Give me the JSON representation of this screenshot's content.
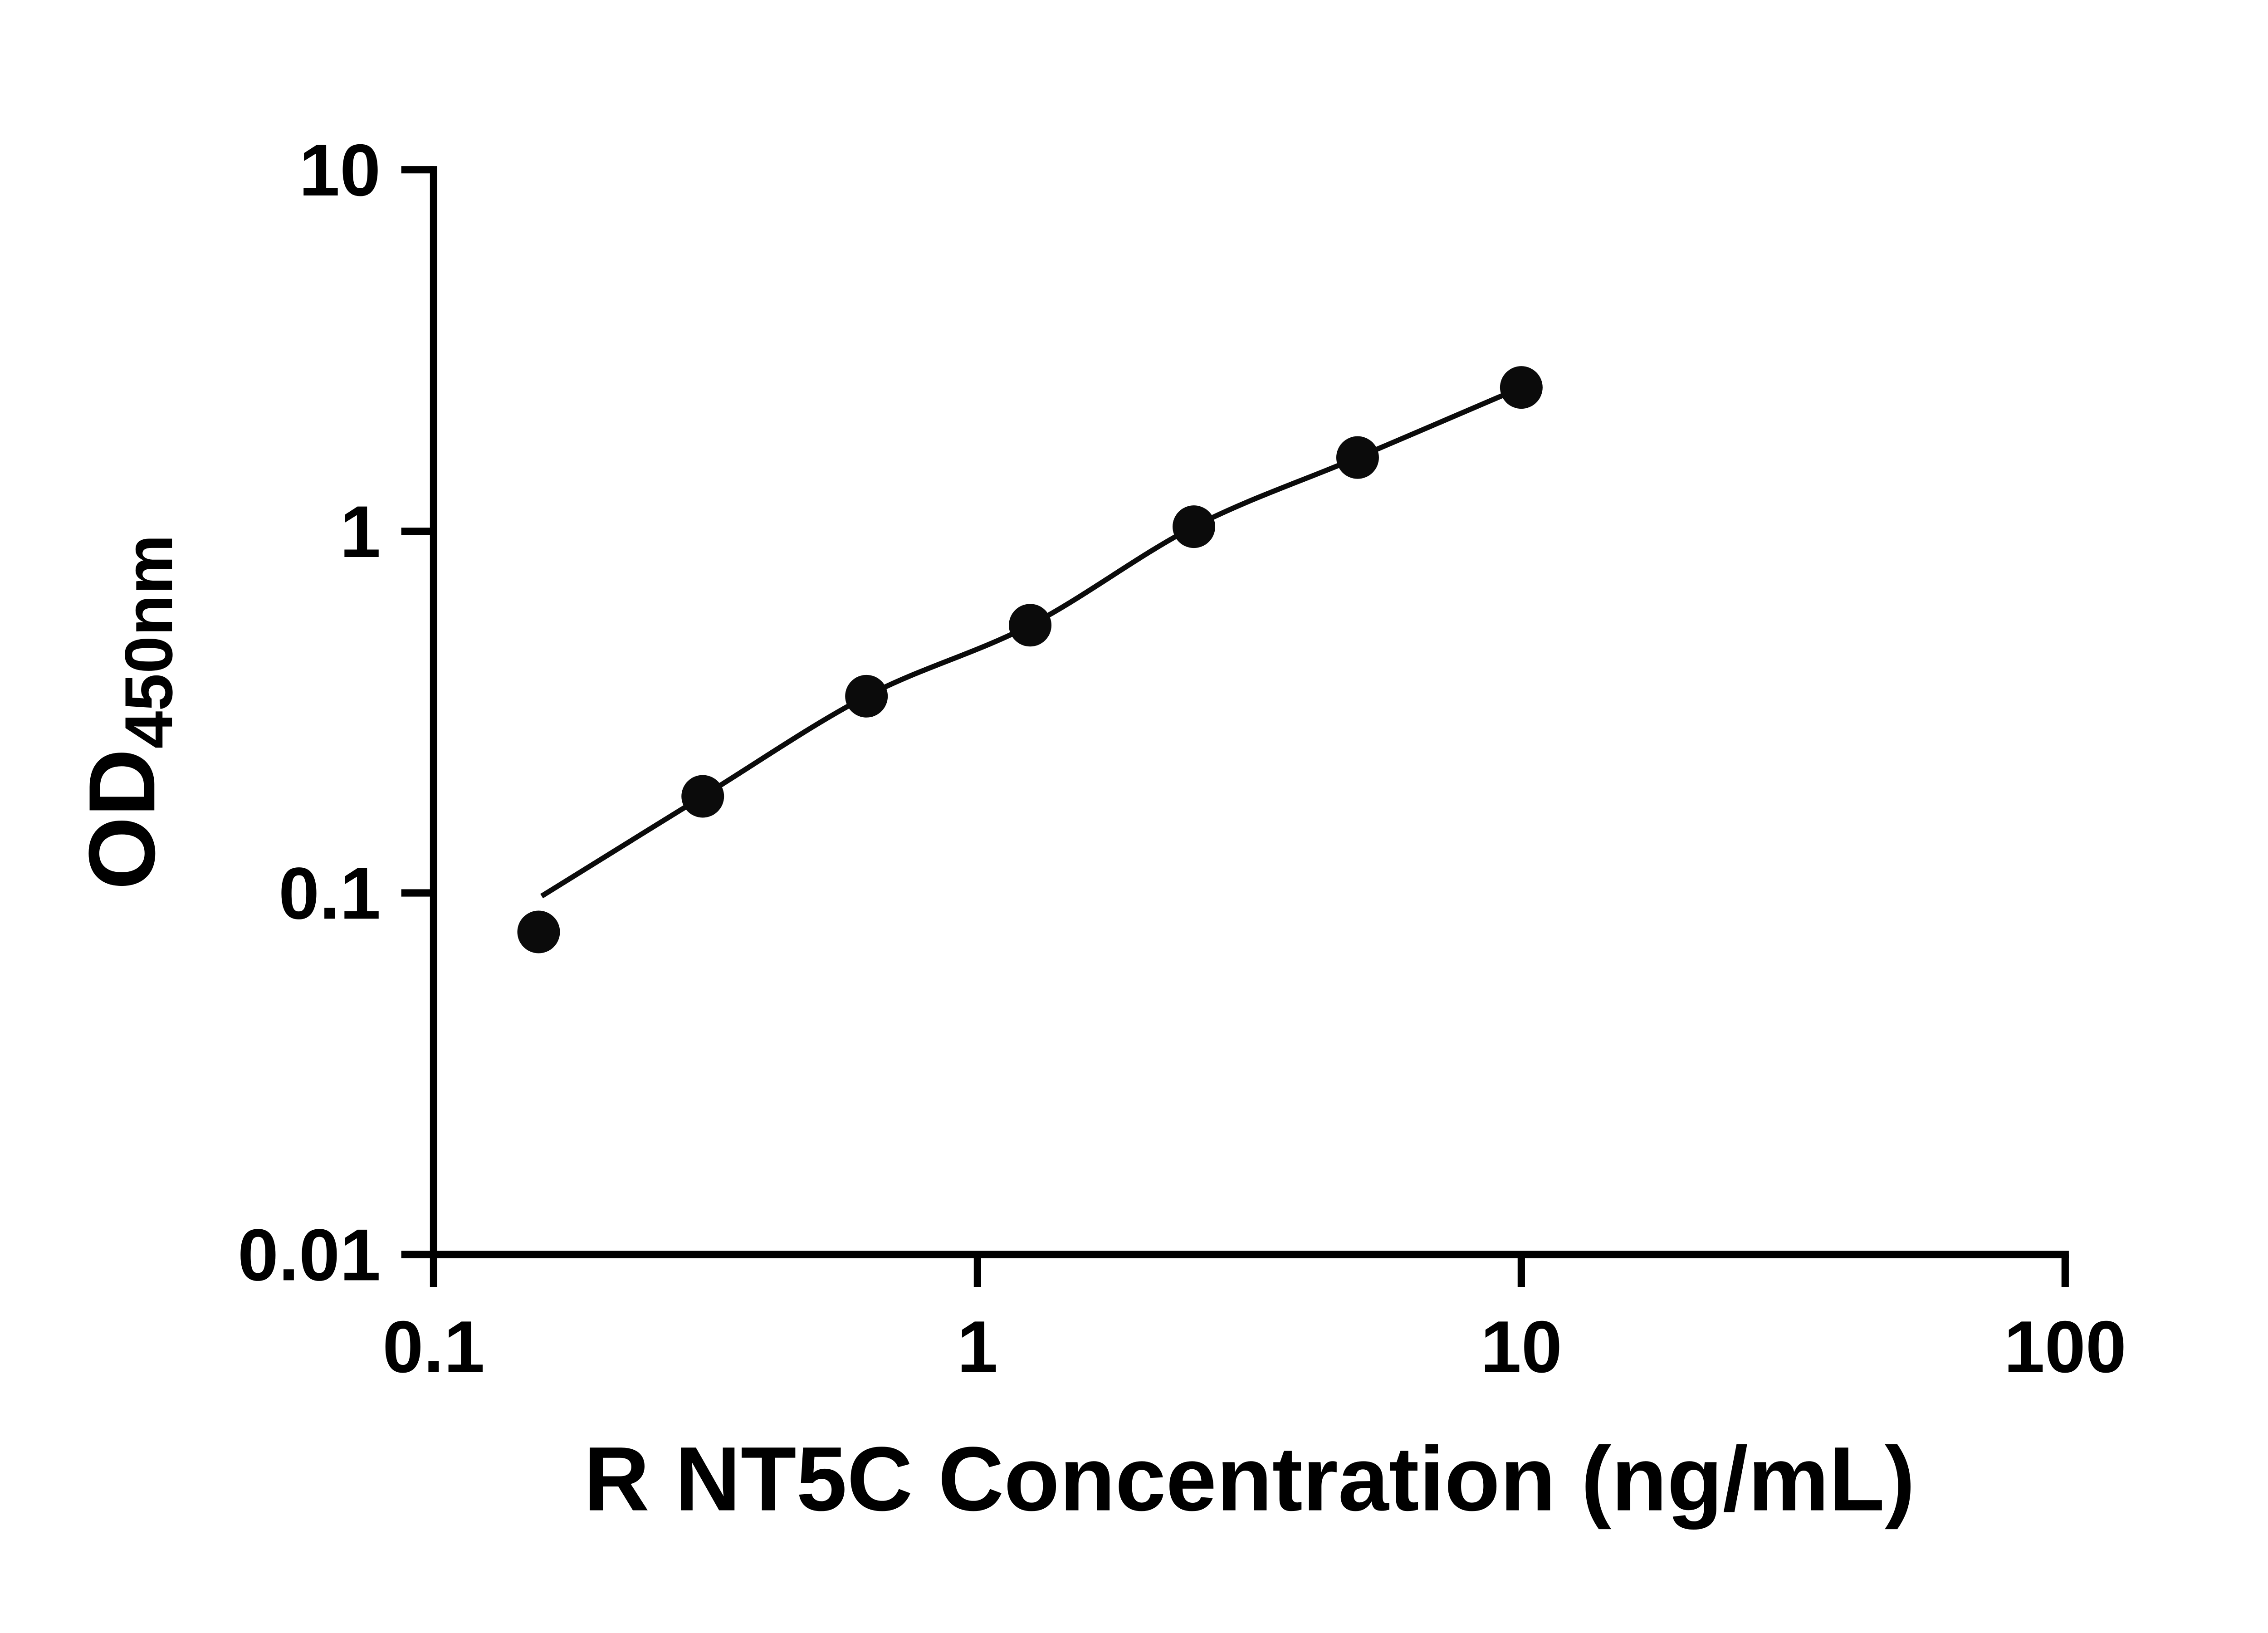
{
  "chart_data": {
    "type": "scatter",
    "title": "",
    "xlabel": "R NT5C Concentration (ng/mL)",
    "ylabel_main": "OD",
    "ylabel_sub": "450nm",
    "x_scale": "log",
    "y_scale": "log",
    "xlim": [
      0.1,
      100
    ],
    "ylim": [
      0.01,
      10
    ],
    "x_ticks": [
      0.1,
      1,
      10,
      100
    ],
    "x_tick_labels": [
      "0.1",
      "1",
      "10",
      "100"
    ],
    "y_ticks": [
      0.01,
      0.1,
      1,
      10
    ],
    "y_tick_labels": [
      "0.01",
      "0.1",
      "1",
      "10"
    ],
    "grid": false,
    "legend": "none",
    "points": {
      "x": [
        0.156,
        0.3125,
        0.625,
        1.25,
        2.5,
        5,
        10
      ],
      "y": [
        0.078,
        0.185,
        0.35,
        0.55,
        1.03,
        1.6,
        2.5
      ]
    },
    "trend": {
      "x": [
        0.158,
        0.3125,
        0.625,
        1.25,
        2.5,
        5,
        10
      ],
      "y": [
        0.098,
        0.185,
        0.35,
        0.55,
        1.03,
        1.6,
        2.5
      ]
    },
    "marker_color": "#0b0b0b",
    "line_color": "#0b0b0b",
    "axis_color": "#000000",
    "text_color": "#000000"
  }
}
